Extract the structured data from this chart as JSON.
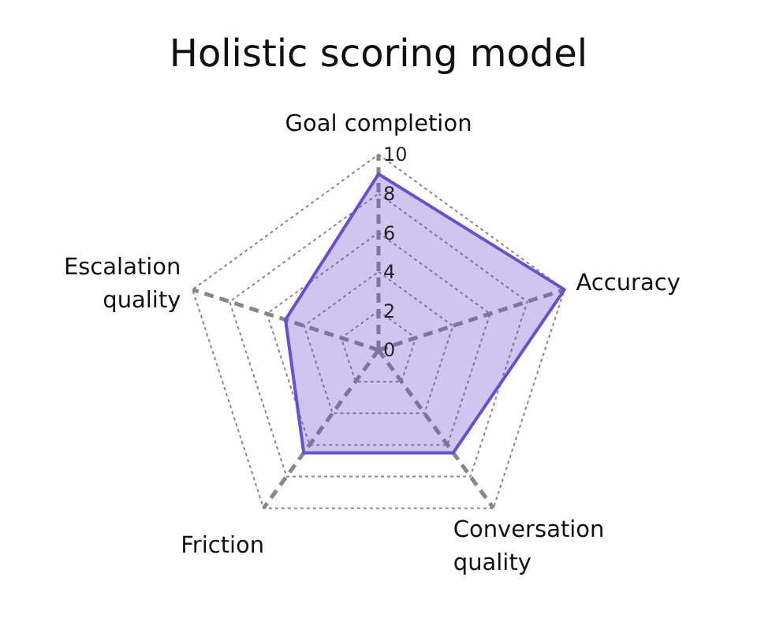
{
  "chart_data": {
    "type": "radar",
    "title": "Holistic scoring model",
    "categories": [
      "Goal completion",
      "Accuracy",
      "Conversation quality",
      "Friction",
      "Escalation quality"
    ],
    "series": [
      {
        "color": "#6a4fcf",
        "values": [
          9,
          10,
          6.5,
          6.5,
          5
        ]
      }
    ],
    "ylim": [
      0,
      10
    ],
    "yticks": [
      0,
      2,
      4,
      6,
      8,
      10
    ],
    "grid": true
  }
}
